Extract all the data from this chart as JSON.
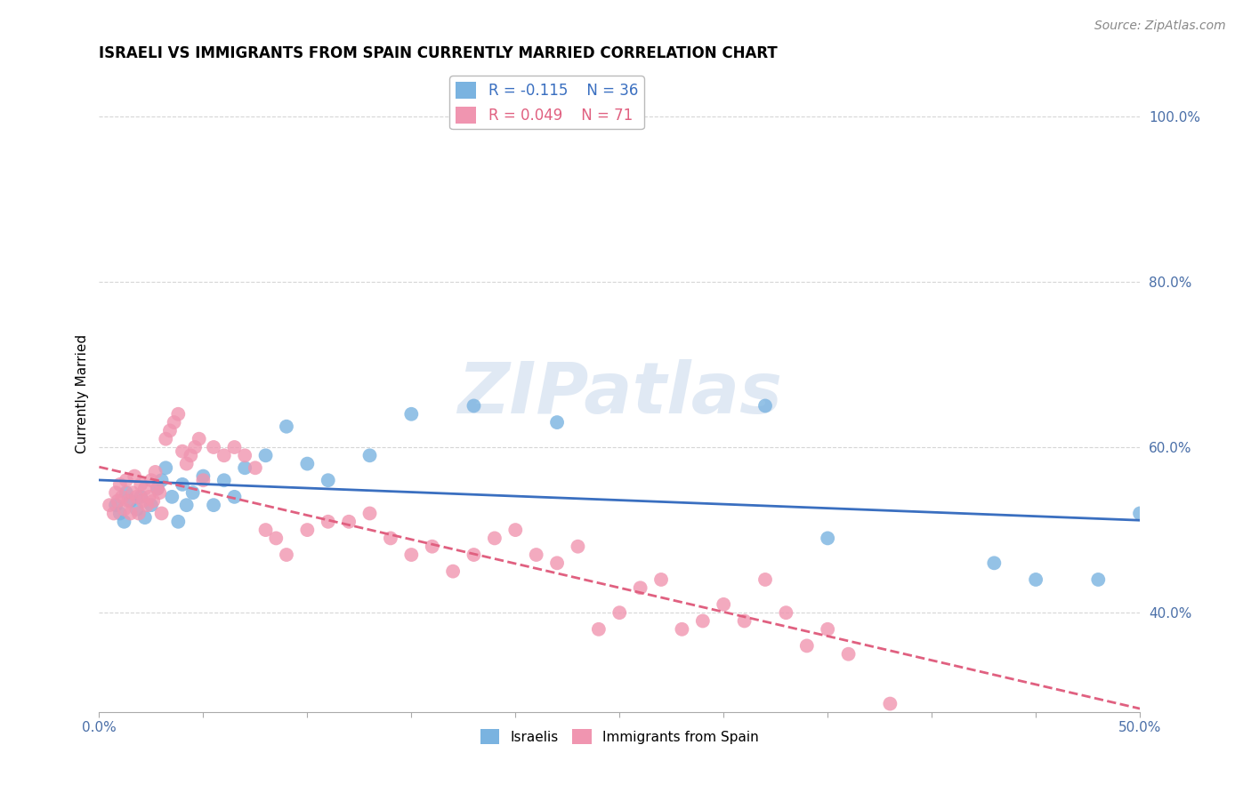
{
  "title": "ISRAELI VS IMMIGRANTS FROM SPAIN CURRENTLY MARRIED CORRELATION CHART",
  "source_text": "Source: ZipAtlas.com",
  "xmin": 0.0,
  "xmax": 0.5,
  "ymin": 0.28,
  "ymax": 1.05,
  "ylabel": "Currently Married",
  "legend_R_blue": "R = -0.115",
  "legend_N_blue": "N = 36",
  "legend_R_pink": "R = 0.049",
  "legend_N_pink": "N = 71",
  "blue_color": "#7ab3e0",
  "pink_color": "#f095b0",
  "blue_line_color": "#3a6fc0",
  "pink_line_color": "#e06080",
  "background_color": "#ffffff",
  "grid_color": "#cccccc",
  "watermark_text": "ZIPatlas",
  "title_fontsize": 12,
  "axis_label_fontsize": 11,
  "tick_fontsize": 11,
  "israelis_x": [
    0.008,
    0.01,
    0.012,
    0.013,
    0.015,
    0.018,
    0.02,
    0.022,
    0.025,
    0.028,
    0.03,
    0.032,
    0.035,
    0.038,
    0.04,
    0.042,
    0.045,
    0.05,
    0.055,
    0.06,
    0.065,
    0.07,
    0.08,
    0.09,
    0.1,
    0.11,
    0.13,
    0.15,
    0.18,
    0.22,
    0.32,
    0.35,
    0.43,
    0.45,
    0.48,
    0.5
  ],
  "israelis_y": [
    0.53,
    0.52,
    0.51,
    0.545,
    0.535,
    0.525,
    0.54,
    0.515,
    0.53,
    0.55,
    0.56,
    0.575,
    0.54,
    0.51,
    0.555,
    0.53,
    0.545,
    0.565,
    0.53,
    0.56,
    0.54,
    0.575,
    0.59,
    0.625,
    0.58,
    0.56,
    0.59,
    0.64,
    0.65,
    0.63,
    0.65,
    0.49,
    0.46,
    0.44,
    0.44,
    0.52
  ],
  "spain_x": [
    0.005,
    0.007,
    0.008,
    0.009,
    0.01,
    0.011,
    0.012,
    0.013,
    0.014,
    0.015,
    0.016,
    0.017,
    0.018,
    0.019,
    0.02,
    0.021,
    0.022,
    0.023,
    0.024,
    0.025,
    0.026,
    0.027,
    0.028,
    0.029,
    0.03,
    0.032,
    0.034,
    0.036,
    0.038,
    0.04,
    0.042,
    0.044,
    0.046,
    0.048,
    0.05,
    0.055,
    0.06,
    0.065,
    0.07,
    0.075,
    0.08,
    0.085,
    0.09,
    0.1,
    0.11,
    0.12,
    0.13,
    0.14,
    0.15,
    0.16,
    0.17,
    0.18,
    0.19,
    0.2,
    0.21,
    0.22,
    0.23,
    0.24,
    0.25,
    0.26,
    0.27,
    0.28,
    0.29,
    0.3,
    0.31,
    0.32,
    0.33,
    0.34,
    0.35,
    0.36,
    0.38
  ],
  "spain_y": [
    0.53,
    0.52,
    0.545,
    0.535,
    0.555,
    0.54,
    0.525,
    0.56,
    0.535,
    0.52,
    0.545,
    0.565,
    0.54,
    0.52,
    0.555,
    0.535,
    0.55,
    0.53,
    0.54,
    0.56,
    0.535,
    0.57,
    0.55,
    0.545,
    0.52,
    0.61,
    0.62,
    0.63,
    0.64,
    0.595,
    0.58,
    0.59,
    0.6,
    0.61,
    0.56,
    0.6,
    0.59,
    0.6,
    0.59,
    0.575,
    0.5,
    0.49,
    0.47,
    0.5,
    0.51,
    0.51,
    0.52,
    0.49,
    0.47,
    0.48,
    0.45,
    0.47,
    0.49,
    0.5,
    0.47,
    0.46,
    0.48,
    0.38,
    0.4,
    0.43,
    0.44,
    0.38,
    0.39,
    0.41,
    0.39,
    0.44,
    0.4,
    0.36,
    0.38,
    0.35,
    0.29
  ]
}
